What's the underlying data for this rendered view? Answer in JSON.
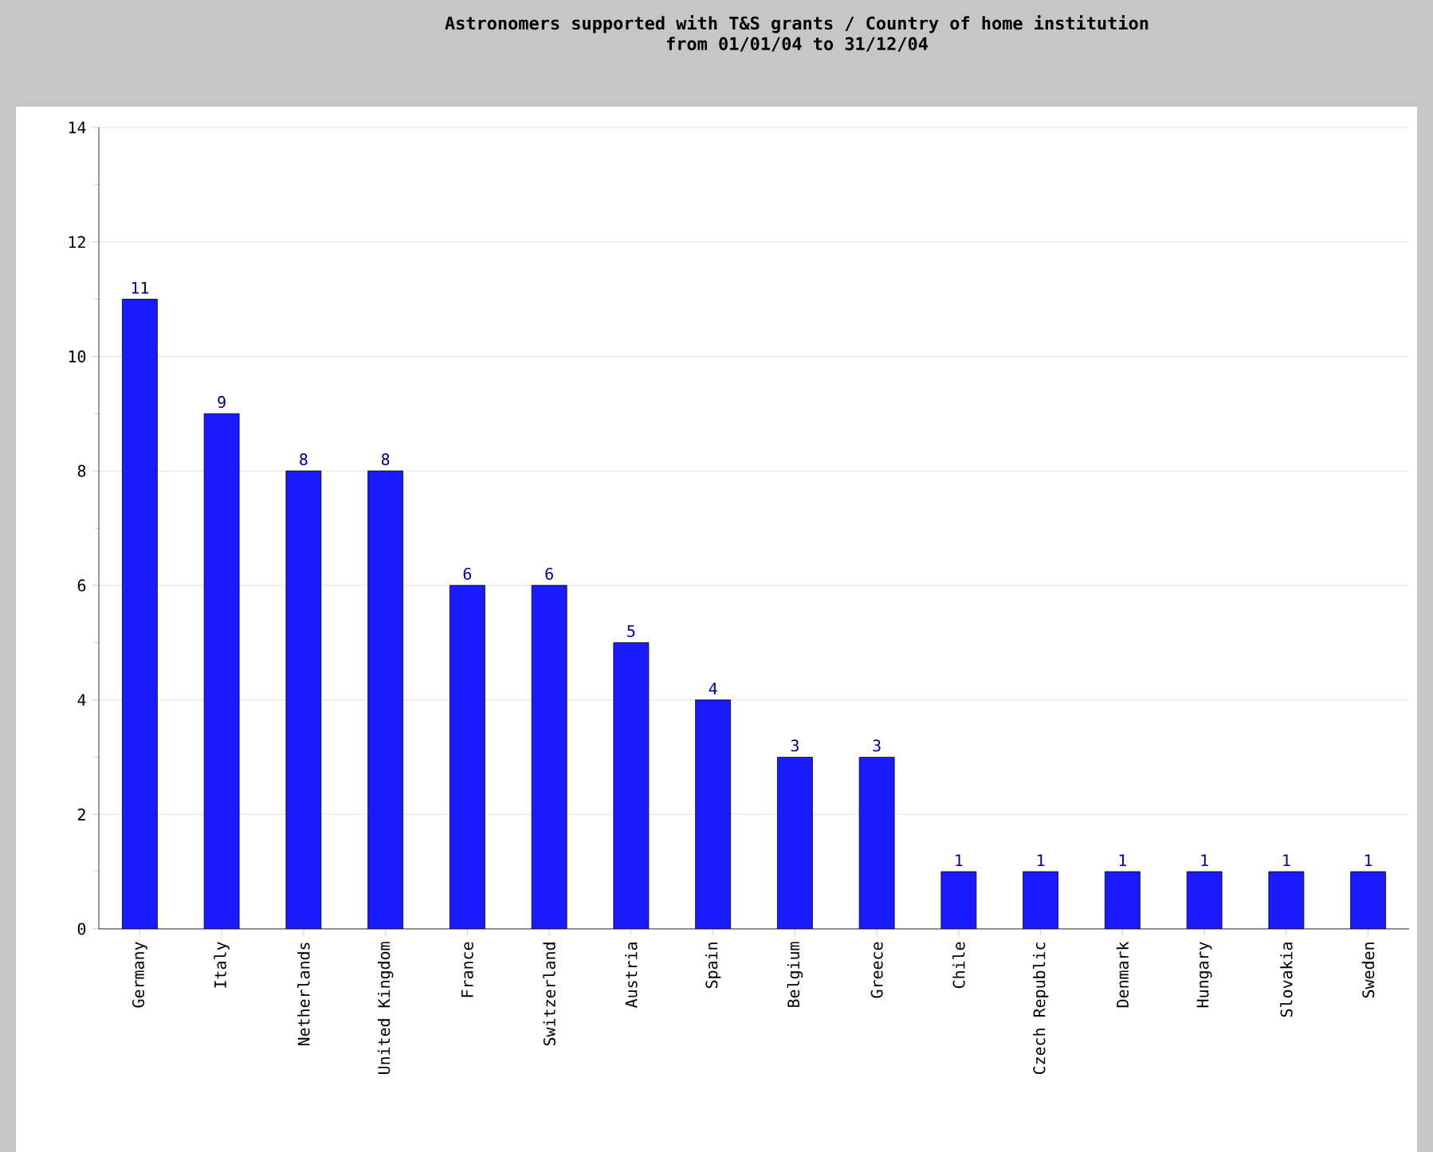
{
  "chart_data": {
    "type": "bar",
    "title": "Astronomers supported with T&S grants / Country of home institution",
    "subtitle": "from 01/01/04 to 31/12/04",
    "categories": [
      "Germany",
      "Italy",
      "Netherlands",
      "United Kingdom",
      "France",
      "Switzerland",
      "Austria",
      "Spain",
      "Belgium",
      "Greece",
      "Chile",
      "Czech Republic",
      "Denmark",
      "Hungary",
      "Slovakia",
      "Sweden"
    ],
    "values": [
      11,
      9,
      8,
      8,
      6,
      6,
      5,
      4,
      3,
      3,
      1,
      1,
      1,
      1,
      1,
      1
    ],
    "color": "#1a1aff",
    "ylim": [
      0,
      14
    ],
    "yticks": [
      0,
      2,
      4,
      6,
      8,
      10,
      12,
      14
    ],
    "grid": "y",
    "data_labels": true
  }
}
